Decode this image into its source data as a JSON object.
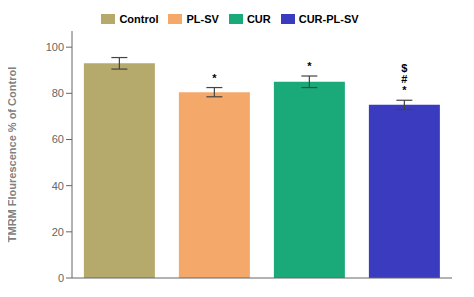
{
  "chart_data": {
    "type": "bar",
    "categories": [
      "Control",
      "PL-SV",
      "CUR",
      "CUR-PL-SV"
    ],
    "values": [
      93.0,
      80.5,
      85.0,
      75.0
    ],
    "errors": [
      2.5,
      2.0,
      2.5,
      2.0
    ],
    "colors": [
      "#b5aa6b",
      "#f4a96a",
      "#1aaa7a",
      "#3a3bbf"
    ],
    "ylabel": "TMRM Flourescence % of Control",
    "ylim": [
      0,
      107
    ],
    "yticks": [
      0,
      20,
      40,
      60,
      80,
      100
    ],
    "legend": "top",
    "grid": false,
    "tick_labels": "y",
    "annotations": [
      {
        "category": "PL-SV",
        "text": "*"
      },
      {
        "category": "CUR",
        "text": "*"
      },
      {
        "category": "CUR-PL-SV",
        "text": "$\n#\n*"
      }
    ]
  }
}
